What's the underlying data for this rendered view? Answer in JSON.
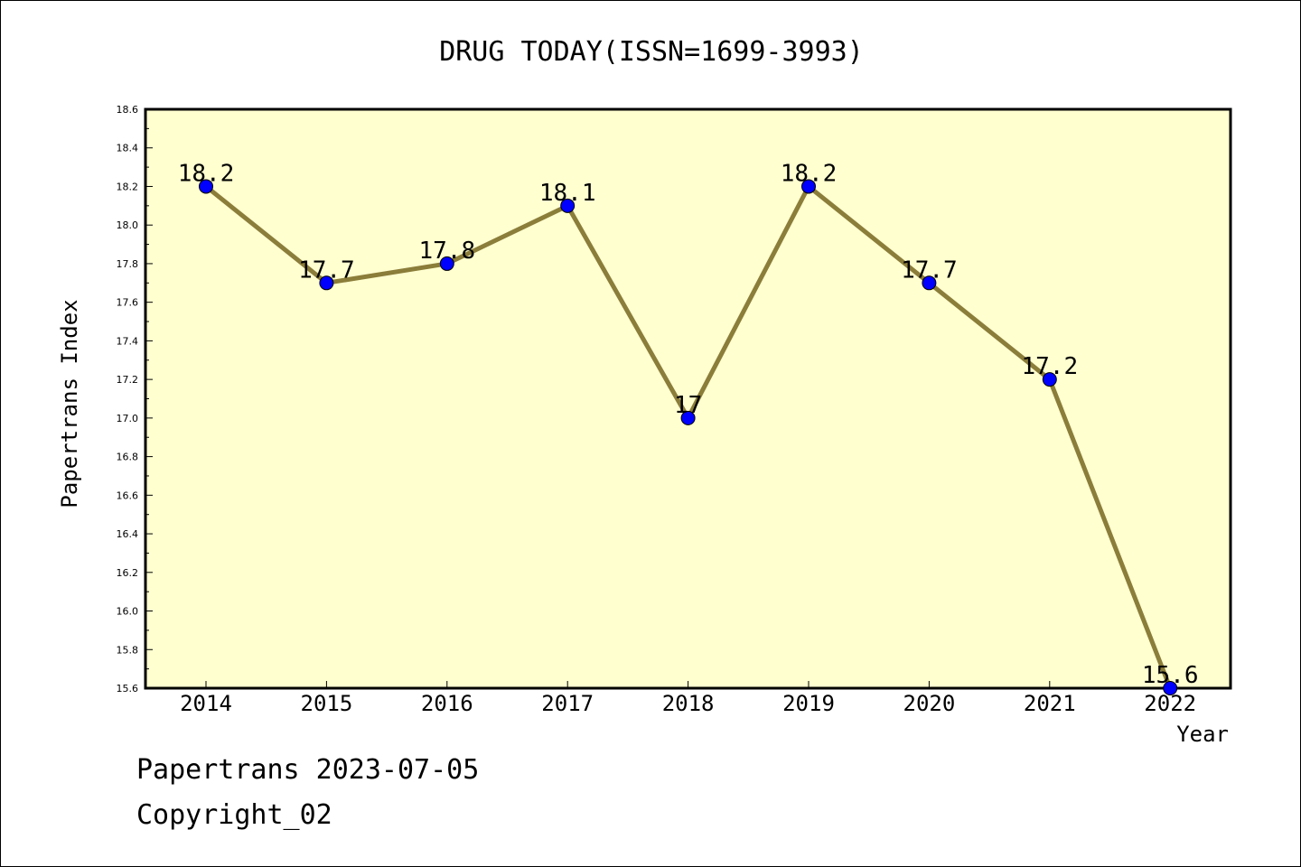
{
  "chart_data": {
    "type": "line",
    "title": "DRUG TODAY(ISSN=1699-3993)",
    "xlabel": "Year",
    "ylabel": "Papertrans Index",
    "categories": [
      "2014",
      "2015",
      "2016",
      "2017",
      "2018",
      "2019",
      "2020",
      "2021",
      "2022"
    ],
    "series": [
      {
        "values": [
          18.2,
          17.7,
          17.8,
          18.1,
          17.0,
          18.2,
          17.7,
          17.2,
          15.6
        ],
        "data_labels": [
          "18.2",
          "17.7",
          "17.8",
          "18.1",
          "17",
          "18.2",
          "17.7",
          "17.2",
          "15.6"
        ]
      }
    ],
    "ylim": [
      15.6,
      18.6
    ],
    "yticks": [
      "15.6",
      "15.8",
      "16.0",
      "16.2",
      "16.4",
      "16.6",
      "16.8",
      "17.0",
      "17.2",
      "17.4",
      "17.6",
      "17.8",
      "18.0",
      "18.2",
      "18.4",
      "18.6"
    ],
    "grid": false,
    "legend": "none",
    "colors": {
      "plot_background": "#ffffd0",
      "line": "#8b7d3a",
      "marker": "#0000ff",
      "frame": "#000000"
    }
  },
  "footer": {
    "line1": "Papertrans 2023-07-05",
    "line2": "Copyright_02"
  }
}
